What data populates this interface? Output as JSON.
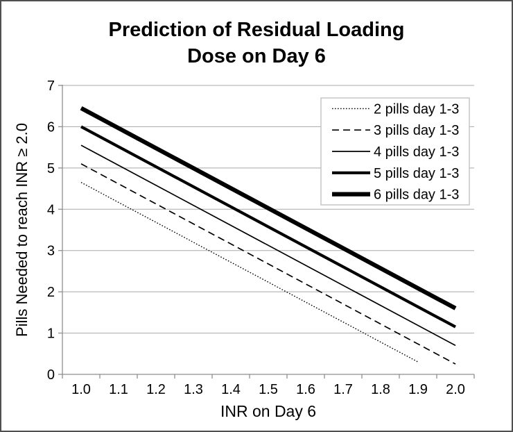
{
  "frame": {
    "background": "#ffffff",
    "border_color": "#4f4f4f"
  },
  "chart_data": {
    "type": "line",
    "title": "Prediction of Residual Loading\nDose on Day 6",
    "xlabel": "INR on Day 6",
    "ylabel": "Pills Needed to reach INR ≥ 2.0",
    "x_ticks": [
      "1.0",
      "1.1",
      "1.2",
      "1.3",
      "1.4",
      "1.5",
      "1.6",
      "1.7",
      "1.8",
      "1.9",
      "2.0"
    ],
    "xlim": [
      1.0,
      2.0
    ],
    "y_ticks": [
      "0",
      "1",
      "2",
      "3",
      "4",
      "5",
      "6",
      "7"
    ],
    "ylim": [
      0,
      7
    ],
    "grid": "horizontal",
    "legend_position": "top-right",
    "colors": {
      "line": "#000000",
      "grid": "#a8a8a8",
      "axis": "#8f8f8f",
      "text": "#000000",
      "legend_border": "#bdbdbd",
      "legend_fill": "#ffffff"
    },
    "series": [
      {
        "name": "2 pills day 1-3",
        "style": "dotted",
        "x": [
          1.0,
          1.9
        ],
        "y": [
          4.65,
          0.3
        ]
      },
      {
        "name": "3 pills day 1-3",
        "style": "dashed",
        "x": [
          1.0,
          2.0
        ],
        "y": [
          5.1,
          0.25
        ]
      },
      {
        "name": "4 pills day 1-3",
        "style": "solid-thin",
        "x": [
          1.0,
          2.0
        ],
        "y": [
          5.55,
          0.7
        ]
      },
      {
        "name": "5 pills day 1-3",
        "style": "solid-medium",
        "x": [
          1.0,
          2.0
        ],
        "y": [
          6.0,
          1.15
        ]
      },
      {
        "name": "6 pills day 1-3",
        "style": "solid-thick",
        "x": [
          1.0,
          2.0
        ],
        "y": [
          6.45,
          1.6
        ]
      }
    ]
  }
}
